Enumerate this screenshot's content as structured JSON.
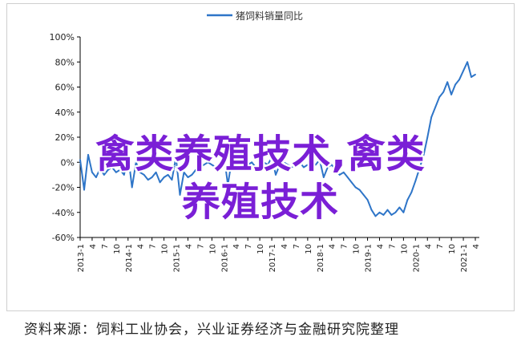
{
  "chart_data": {
    "type": "line",
    "legend": {
      "label": "猪饲料销量同比",
      "placement": "top-center",
      "color": "#2e75c8"
    },
    "ylim": [
      -0.6,
      1.0
    ],
    "yticks": [
      "100%",
      "80%",
      "60%",
      "40%",
      "20%",
      "0%",
      "-20%",
      "-40%",
      "-60%"
    ],
    "grid": false,
    "xticks": [
      "2013-01",
      "2013-04",
      "2013-07",
      "2013-10",
      "2014-01",
      "2014-04",
      "2014-07",
      "2014-10",
      "2015-01",
      "2015-04",
      "2015-07",
      "2015-10",
      "2016-01",
      "2016-04",
      "2016-07",
      "2016-10",
      "2017-01",
      "2017-04",
      "2017-07",
      "2017-10",
      "2018-01",
      "2018-04",
      "2018-07",
      "2018-10",
      "2019-01",
      "2019-04",
      "2019-07",
      "2019-10",
      "2020-01",
      "2020-04",
      "2020-07",
      "2020-10",
      "2021-01",
      "2021-04"
    ],
    "year_labels": [
      "2013",
      "2014",
      "2015",
      "2016",
      "2017",
      "2018",
      "2019",
      "2020",
      "2021"
    ],
    "series": [
      {
        "name": "猪饲料销量同比",
        "color": "#2e75c8",
        "x": [
          "2013-01",
          "2013-02",
          "2013-03",
          "2013-04",
          "2013-05",
          "2013-06",
          "2013-07",
          "2013-08",
          "2013-09",
          "2013-10",
          "2013-11",
          "2013-12",
          "2014-01",
          "2014-02",
          "2014-03",
          "2014-04",
          "2014-05",
          "2014-06",
          "2014-07",
          "2014-08",
          "2014-09",
          "2014-10",
          "2014-11",
          "2014-12",
          "2015-01",
          "2015-02",
          "2015-03",
          "2015-04",
          "2015-05",
          "2015-06",
          "2015-07",
          "2015-08",
          "2015-09",
          "2015-10",
          "2015-11",
          "2015-12",
          "2016-01",
          "2016-02",
          "2016-03",
          "2016-04",
          "2016-05",
          "2016-06",
          "2016-07",
          "2016-08",
          "2016-09",
          "2016-10",
          "2016-11",
          "2016-12",
          "2017-01",
          "2017-02",
          "2017-03",
          "2017-04",
          "2017-05",
          "2017-06",
          "2017-07",
          "2017-08",
          "2017-09",
          "2017-10",
          "2017-11",
          "2017-12",
          "2018-01",
          "2018-02",
          "2018-03",
          "2018-04",
          "2018-05",
          "2018-06",
          "2018-07",
          "2018-08",
          "2018-09",
          "2018-10",
          "2018-11",
          "2018-12",
          "2019-01",
          "2019-02",
          "2019-03",
          "2019-04",
          "2019-05",
          "2019-06",
          "2019-07",
          "2019-08",
          "2019-09",
          "2019-10",
          "2019-11",
          "2019-12",
          "2020-01",
          "2020-02",
          "2020-03",
          "2020-04",
          "2020-05",
          "2020-06",
          "2020-07",
          "2020-08",
          "2020-09",
          "2020-10",
          "2020-11",
          "2020-12",
          "2021-01",
          "2021-02",
          "2021-03",
          "2021-04"
        ],
        "values": [
          0.02,
          -0.22,
          0.06,
          -0.08,
          -0.12,
          -0.05,
          -0.1,
          -0.06,
          -0.04,
          -0.08,
          -0.06,
          -0.1,
          0.06,
          -0.2,
          0.0,
          -0.08,
          -0.1,
          -0.14,
          -0.12,
          -0.08,
          -0.16,
          -0.12,
          -0.1,
          -0.14,
          0.04,
          -0.26,
          -0.08,
          -0.12,
          -0.1,
          -0.06,
          -0.04,
          -0.02,
          0.0,
          -0.02,
          -0.04,
          0.0,
          0.06,
          -0.18,
          0.02,
          -0.02,
          -0.06,
          -0.04,
          -0.02,
          0.0,
          -0.04,
          -0.02,
          0.0,
          -0.02,
          0.04,
          -0.1,
          -0.02,
          0.0,
          -0.02,
          -0.04,
          -0.02,
          0.0,
          -0.04,
          -0.02,
          0.0,
          -0.02,
          0.02,
          -0.12,
          -0.04,
          -0.02,
          -0.06,
          -0.1,
          -0.08,
          -0.12,
          -0.16,
          -0.2,
          -0.22,
          -0.26,
          -0.3,
          -0.38,
          -0.43,
          -0.4,
          -0.42,
          -0.38,
          -0.42,
          -0.4,
          -0.36,
          -0.4,
          -0.3,
          -0.24,
          -0.15,
          -0.05,
          0.05,
          0.2,
          0.36,
          0.44,
          0.52,
          0.56,
          0.64,
          0.54,
          0.62,
          0.66,
          0.73,
          0.8,
          0.68,
          0.7
        ]
      }
    ]
  },
  "watermark": {
    "line1": "禽类养殖技术,禽类",
    "line2": "养殖技术"
  },
  "source": "资料来源：饲料工业协会，兴业证券经济与金融研究院整理"
}
